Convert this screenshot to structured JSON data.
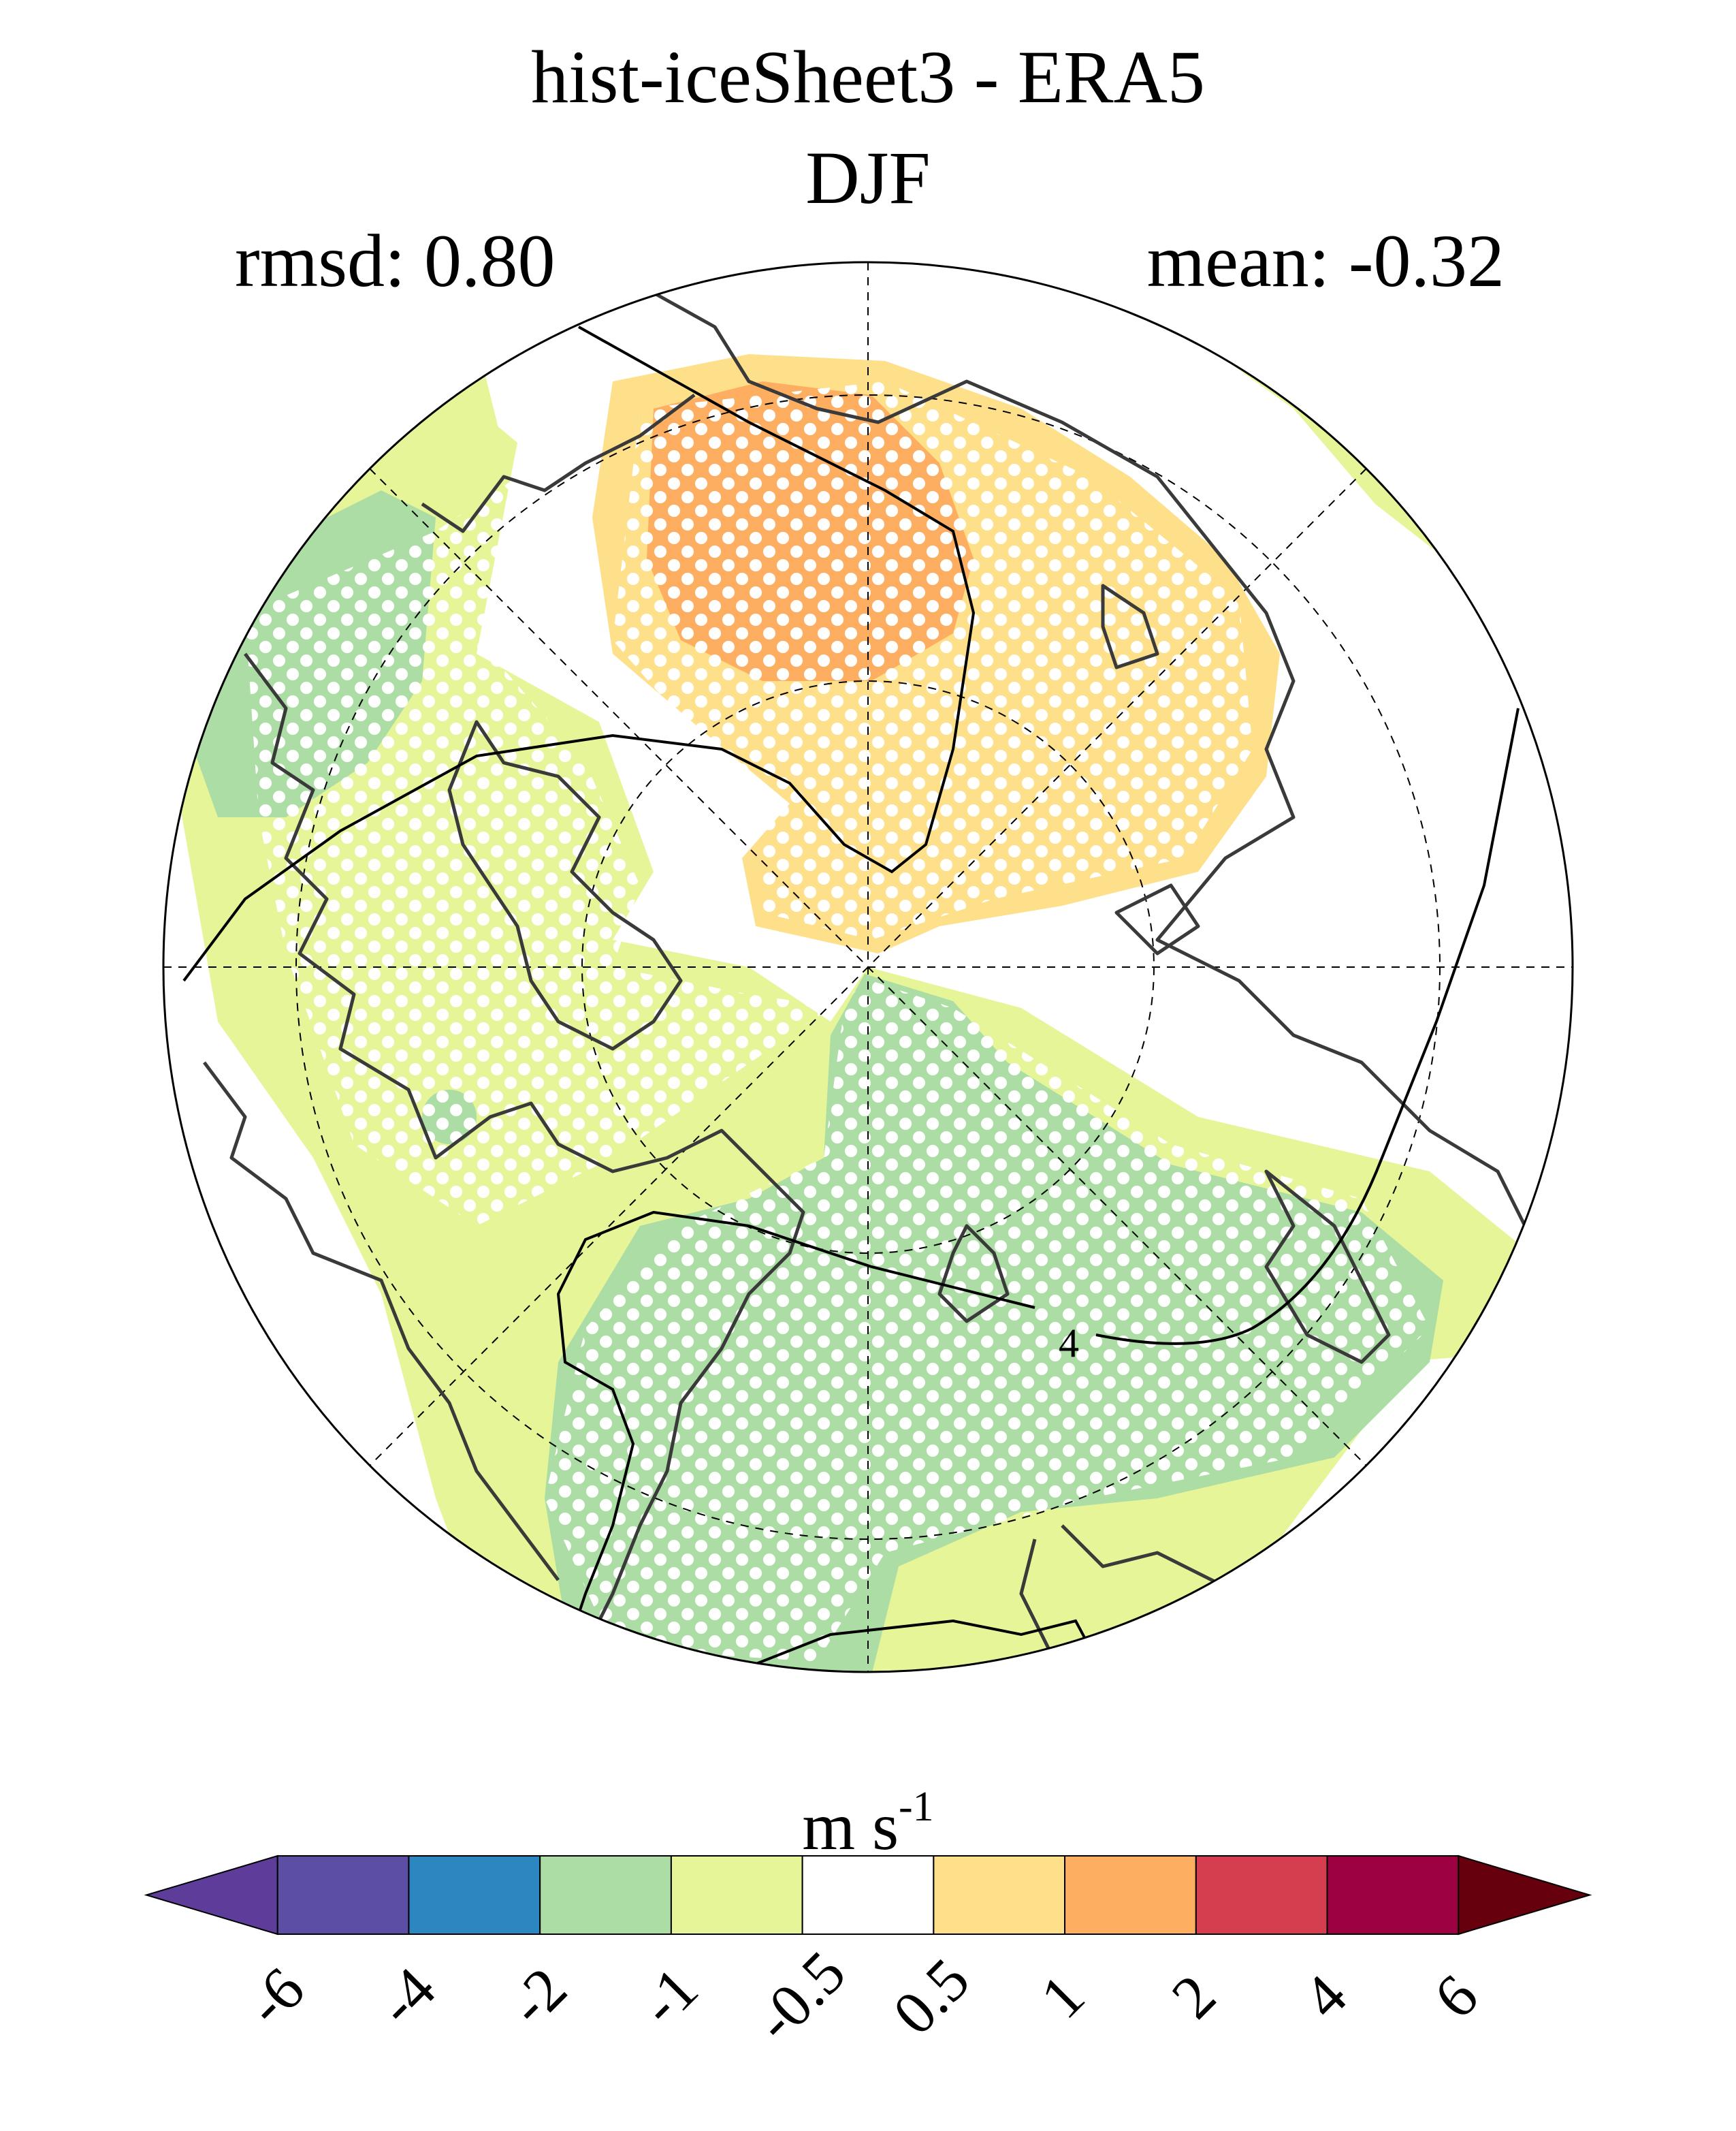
{
  "title": "hist-iceSheet3 - ERA5",
  "season": "DJF",
  "stats": {
    "rmsd_label": "rmsd: 0.80",
    "mean_label": "mean: -0.32"
  },
  "contour_label": "4",
  "colorbar": {
    "unit_main": "m s",
    "unit_exp": "-1",
    "colors": [
      "#5e3c99",
      "#5b4ea3",
      "#2c86bf",
      "#abdda4",
      "#e6f598",
      "#ffffff",
      "#fee08b",
      "#fdae61",
      "#d53e4f",
      "#9e0142",
      "#67000d"
    ],
    "labels": [
      "-6",
      "-4",
      "-2",
      "-1",
      "-0.5",
      "0.5",
      "1",
      "2",
      "4",
      "6"
    ]
  },
  "map": {
    "projection": "north polar stereographic",
    "stipple": "white dots",
    "colors": {
      "green": "#abdda4",
      "light_green": "#e6f598",
      "yellow": "#fee08b",
      "orange": "#fdae61",
      "red": "#d53e4f"
    }
  }
}
